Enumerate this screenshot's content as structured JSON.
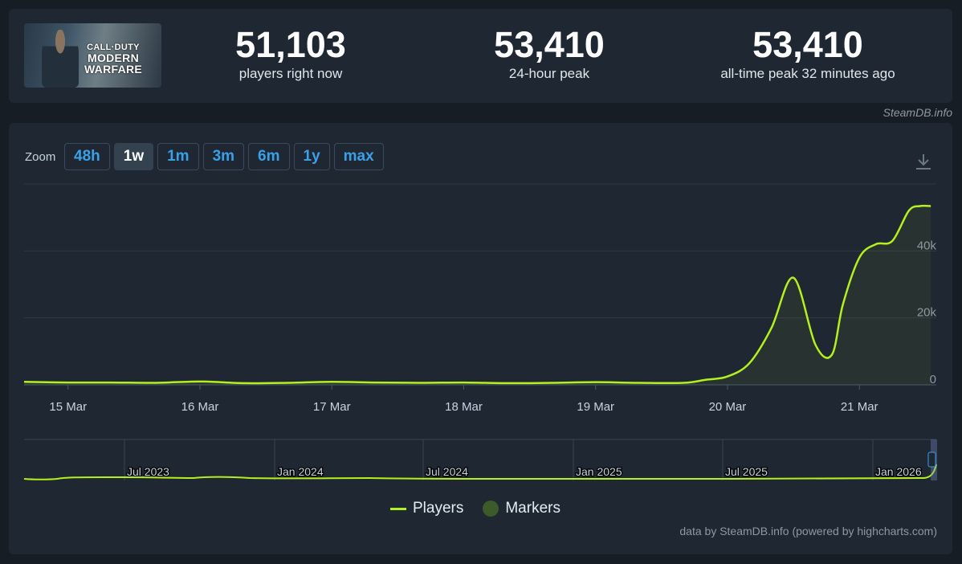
{
  "game": {
    "logo_line1": "CALL·DUTY",
    "logo_line2": "MODERN",
    "logo_line3": "WARFARE"
  },
  "stats": [
    {
      "value": "51,103",
      "label": "players right now"
    },
    {
      "value": "53,410",
      "label": "24-hour peak"
    },
    {
      "value": "53,410",
      "label": "all-time peak 32 minutes ago"
    }
  ],
  "credit_top": "SteamDB.info",
  "zoom": {
    "label": "Zoom",
    "buttons": [
      "48h",
      "1w",
      "1m",
      "3m",
      "6m",
      "1y",
      "max"
    ],
    "active": "1w"
  },
  "legend": {
    "players": "Players",
    "markers": "Markers"
  },
  "credit_bottom": "data by SteamDB.info (powered by highcharts.com)",
  "colors": {
    "line": "#b4f01e",
    "accent": "#3aa0e8",
    "background": "#171d25",
    "panel": "#1f2732"
  },
  "icons": {
    "download": "download-icon"
  },
  "chart_data": {
    "type": "line",
    "ylim": [
      0,
      60000
    ],
    "yticks": [
      0,
      20000,
      40000
    ],
    "ytick_labels": [
      "0",
      "20k",
      "40k"
    ],
    "xlim": [
      "2026-03-14T16:00",
      "2026-03-21T14:00"
    ],
    "xtick_labels": [
      "15 Mar",
      "16 Mar",
      "17 Mar",
      "18 Mar",
      "19 Mar",
      "20 Mar",
      "21 Mar"
    ],
    "xtick_values": [
      "2026-03-15",
      "2026-03-16",
      "2026-03-17",
      "2026-03-18",
      "2026-03-19",
      "2026-03-20",
      "2026-03-21"
    ],
    "series": [
      {
        "name": "Players",
        "x": [
          "2026-03-14T16:00",
          "2026-03-15T00:00",
          "2026-03-15T08:00",
          "2026-03-15T16:00",
          "2026-03-16T00:00",
          "2026-03-16T08:00",
          "2026-03-16T16:00",
          "2026-03-17T00:00",
          "2026-03-17T08:00",
          "2026-03-17T16:00",
          "2026-03-18T00:00",
          "2026-03-18T08:00",
          "2026-03-18T16:00",
          "2026-03-19T00:00",
          "2026-03-19T08:00",
          "2026-03-19T16:00",
          "2026-03-19T20:00",
          "2026-03-20T00:00",
          "2026-03-20T04:00",
          "2026-03-20T08:00",
          "2026-03-20T12:00",
          "2026-03-20T16:00",
          "2026-03-20T19:00",
          "2026-03-20T21:00",
          "2026-03-21T00:00",
          "2026-03-21T03:00",
          "2026-03-21T06:00",
          "2026-03-21T09:00",
          "2026-03-21T11:00",
          "2026-03-21T13:00"
        ],
        "y": [
          900,
          700,
          700,
          600,
          1000,
          500,
          600,
          900,
          700,
          600,
          700,
          500,
          600,
          800,
          600,
          600,
          1500,
          2500,
          6500,
          17000,
          32000,
          12000,
          9000,
          24000,
          38000,
          42000,
          43000,
          52000,
          53400,
          53410
        ]
      }
    ],
    "navigator": {
      "type": "line",
      "xtick_labels": [
        "Jul 2023",
        "Jan 2024",
        "Jul 2024",
        "Jan 2025",
        "Jul 2025",
        "Jan 2026"
      ]
    }
  }
}
